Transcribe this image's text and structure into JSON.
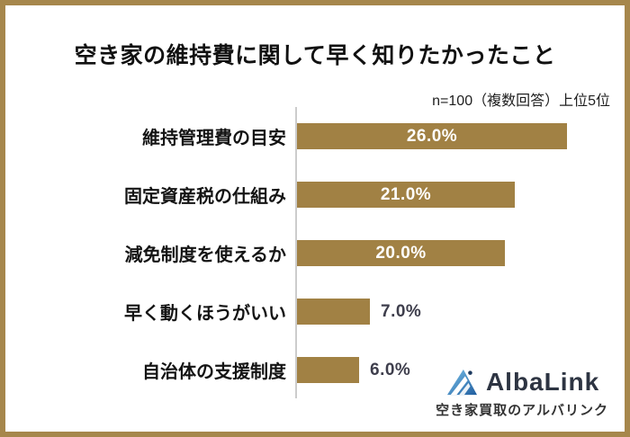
{
  "title": "空き家の維持費に関して早く知りたかったこと",
  "note": "n=100（複数回答）上位5位",
  "chart_data": {
    "type": "bar",
    "orientation": "horizontal",
    "title": "空き家の維持費に関して早く知りたかったこと",
    "note": "n=100（複数回答）上位5位",
    "categories": [
      "維持管理費の目安",
      "固定資産税の仕組み",
      "減免制度を使えるか",
      "早く動くほうがいい",
      "自治体の支援制度"
    ],
    "values": [
      26.0,
      21.0,
      20.0,
      7.0,
      6.0
    ],
    "value_labels": [
      "26.0%",
      "21.0%",
      "20.0%",
      "7.0%",
      "6.0%"
    ],
    "xlim": [
      0,
      26
    ],
    "grid": false,
    "legend": false,
    "bar_color": "#a18144",
    "axis_color": "#cccccc",
    "inside_label_color": "#ffffff",
    "outside_label_color": "#3e3e4c",
    "inside_label_min_value": 15
  },
  "logo": {
    "name": "AlbaLink",
    "tagline": "空き家買取のアルバリンク",
    "text_color": "#2d3442",
    "icon_light": "#7cc4ec",
    "icon_dark": "#1e5c9e",
    "icon_accent": "#1d3a5f"
  },
  "frame": {
    "border_color": "#a6874c"
  }
}
